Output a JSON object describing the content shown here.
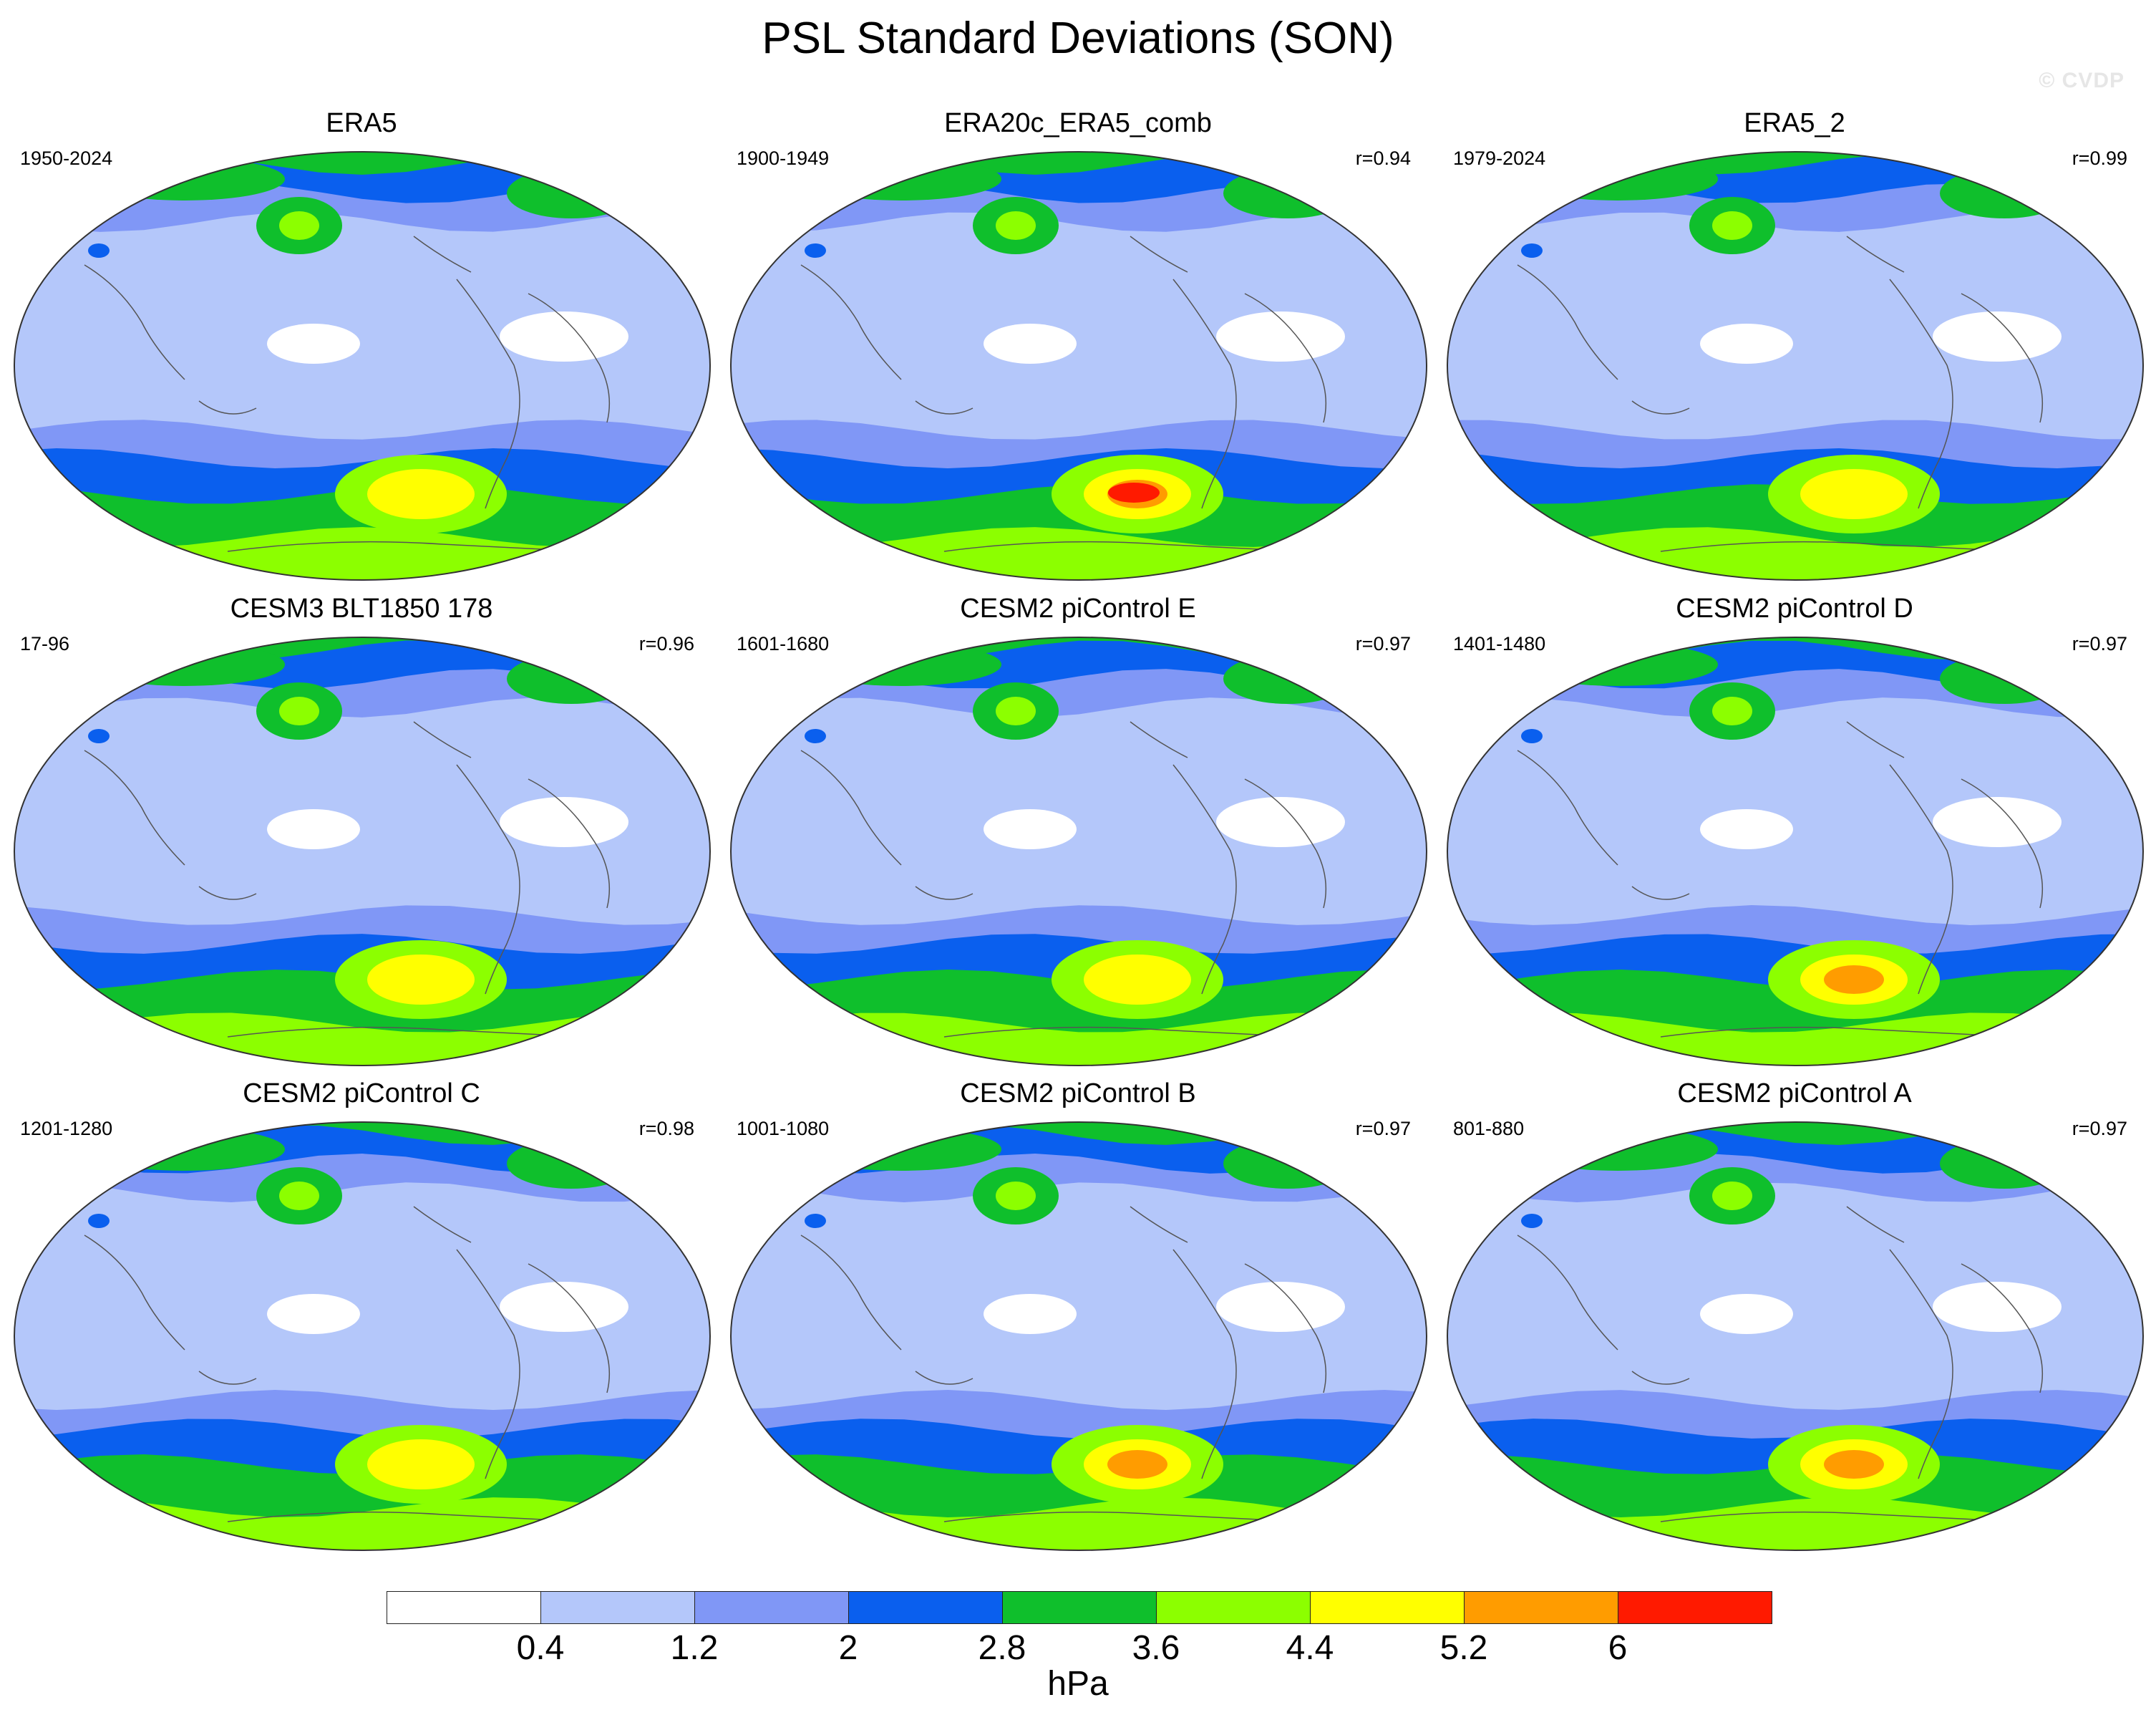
{
  "title": "PSL Standard Deviations (SON)",
  "watermark": "© CVDP",
  "units": "hPa",
  "colorbar": {
    "levels": [
      "0.4",
      "1.2",
      "2",
      "2.8",
      "3.6",
      "4.4",
      "5.2",
      "6"
    ],
    "colors": [
      "#ffffff",
      "#b4c7fa",
      "#8097f6",
      "#0a5fee",
      "#0fbf2c",
      "#8cff00",
      "#ffff00",
      "#ff9c00",
      "#ff1a00"
    ]
  },
  "panels": [
    {
      "title": "ERA5",
      "period": "1950-2024",
      "corr": ""
    },
    {
      "title": "ERA20c_ERA5_comb",
      "period": "1900-1949",
      "corr": "r=0.94"
    },
    {
      "title": "ERA5_2",
      "period": "1979-2024",
      "corr": "r=0.99"
    },
    {
      "title": "CESM3 BLT1850 178",
      "period": "17-96",
      "corr": "r=0.96"
    },
    {
      "title": "CESM2 piControl E",
      "period": "1601-1680",
      "corr": "r=0.97"
    },
    {
      "title": "CESM2 piControl D",
      "period": "1401-1480",
      "corr": "r=0.97"
    },
    {
      "title": "CESM2 piControl C",
      "period": "1201-1280",
      "corr": "r=0.98"
    },
    {
      "title": "CESM2 piControl B",
      "period": "1001-1080",
      "corr": "r=0.97"
    },
    {
      "title": "CESM2 piControl A",
      "period": "801-880",
      "corr": "r=0.97"
    }
  ]
}
